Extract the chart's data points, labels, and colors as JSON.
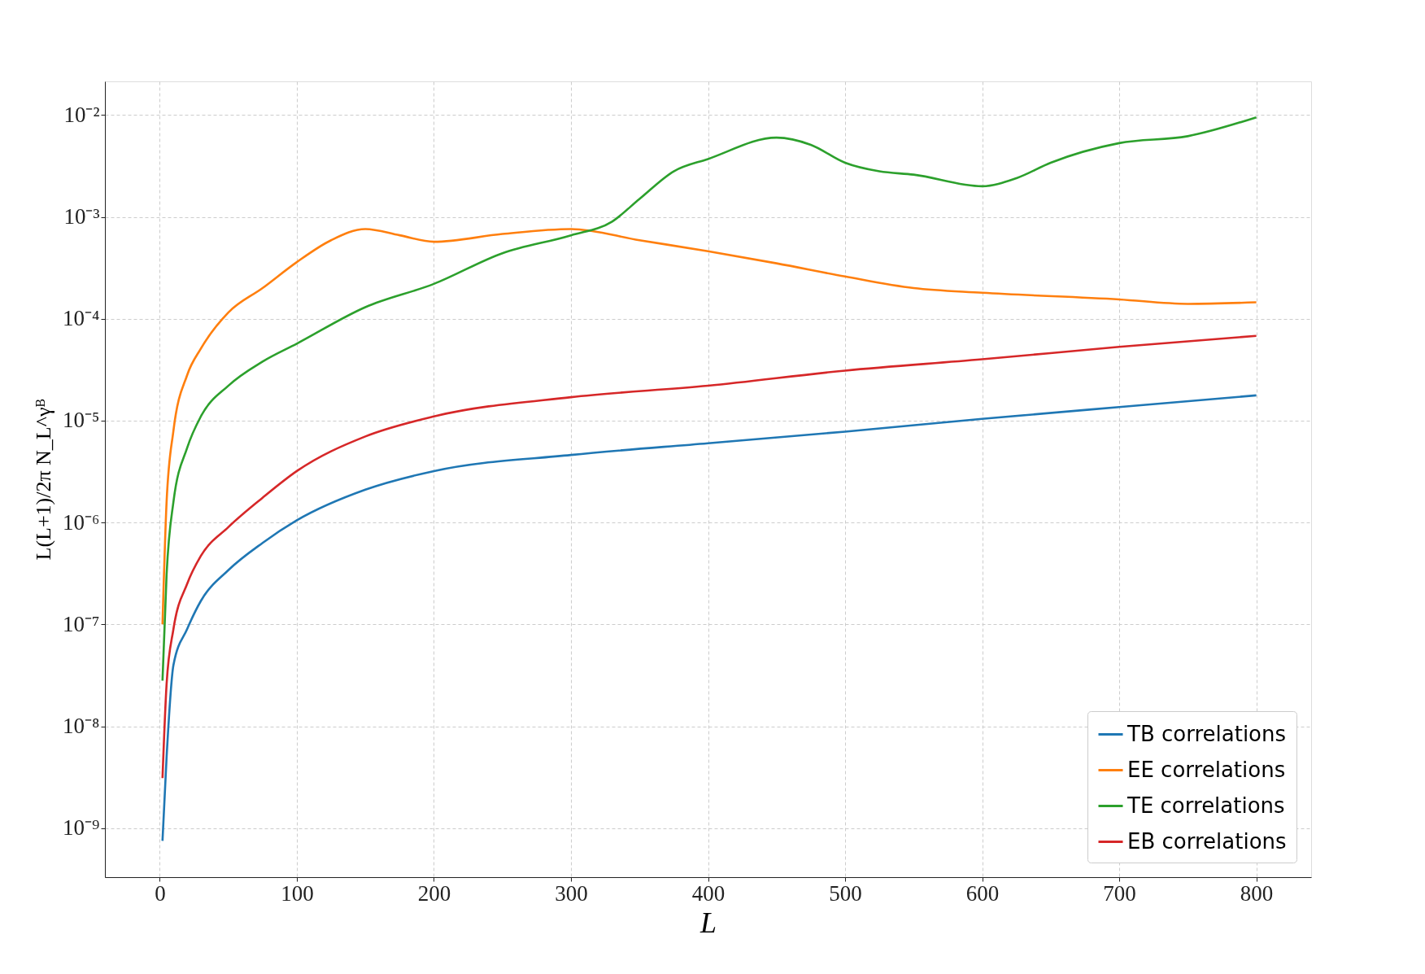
{
  "chart_data": {
    "type": "line",
    "xlabel": "L",
    "ylabel": "L(L+1)/2π N_L^γᴮ",
    "log": "y",
    "grid": true,
    "line_style": "solid",
    "legend": "bottom right",
    "marker": "none",
    "xlim": [
      -40,
      840
    ],
    "xticks": [
      0,
      100,
      200,
      300,
      400,
      500,
      600,
      700,
      800
    ],
    "ylim": [
      3.3e-10,
      0.0214
    ],
    "yticks": [
      {
        "value": 1e-09,
        "label": "10⁻⁹"
      },
      {
        "value": 1e-08,
        "label": "10⁻⁸"
      },
      {
        "value": 1e-07,
        "label": "10⁻⁷"
      },
      {
        "value": 1e-06,
        "label": "10⁻⁶"
      },
      {
        "value": 1e-05,
        "label": "10⁻⁵"
      },
      {
        "value": 0.0001,
        "label": "10⁻⁴"
      },
      {
        "value": 0.001,
        "label": "10⁻³"
      },
      {
        "value": 0.01,
        "label": "10⁻²"
      }
    ],
    "series": [
      {
        "name": "TB correlations",
        "color": "#1f77b4",
        "x": [
          2,
          5,
          10,
          20,
          30,
          50,
          75,
          100,
          150,
          200,
          300,
          400,
          500,
          600,
          700,
          800
        ],
        "values": [
          7.5e-10,
          5e-09,
          4e-08,
          9e-08,
          1.7e-07,
          3.4e-07,
          6.3e-07,
          1.05e-06,
          2.1e-06,
          3.2e-06,
          4.6e-06,
          6e-06,
          7.8e-06,
          1.04e-05,
          1.36e-05,
          1.77e-05
        ]
      },
      {
        "name": "EE correlations",
        "color": "#ff7f0e",
        "x": [
          2,
          5,
          10,
          20,
          30,
          50,
          75,
          100,
          125,
          150,
          175,
          200,
          250,
          300,
          350,
          400,
          450,
          500,
          550,
          600,
          700,
          750,
          800
        ],
        "values": [
          1e-07,
          1.6e-06,
          8e-06,
          2.8e-05,
          5.1e-05,
          0.000115,
          0.0002,
          0.00036,
          0.00059,
          0.00076,
          0.00066,
          0.00057,
          0.00068,
          0.00076,
          0.00059,
          0.00046,
          0.00035,
          0.00026,
          0.0002,
          0.00018,
          0.000155,
          0.00014,
          0.000145
        ]
      },
      {
        "name": "TE correlations",
        "color": "#2ca02c",
        "x": [
          2,
          5,
          10,
          20,
          30,
          50,
          75,
          100,
          150,
          200,
          250,
          300,
          330,
          350,
          375,
          400,
          450,
          475,
          500,
          525,
          550,
          600,
          625,
          650,
          700,
          750,
          800
        ],
        "values": [
          2.8e-08,
          3.1e-07,
          1.6e-06,
          5.4e-06,
          1.1e-05,
          2.2e-05,
          3.8e-05,
          5.7e-05,
          0.00013,
          0.00022,
          0.00044,
          0.00066,
          0.0009,
          0.0015,
          0.0028,
          0.0037,
          0.006,
          0.0051,
          0.0034,
          0.0028,
          0.0026,
          0.002,
          0.0024,
          0.0034,
          0.0053,
          0.0062,
          0.0095
        ]
      },
      {
        "name": "EB correlations",
        "color": "#d62728",
        "x": [
          2,
          5,
          10,
          20,
          30,
          50,
          75,
          100,
          150,
          200,
          300,
          400,
          500,
          600,
          700,
          800
        ],
        "values": [
          3.1e-09,
          2.6e-08,
          9e-08,
          2.5e-07,
          4.7e-07,
          9e-07,
          1.75e-06,
          3.2e-06,
          7e-06,
          1.1e-05,
          1.7e-05,
          2.2e-05,
          3.1e-05,
          4e-05,
          5.3e-05,
          6.8e-05
        ]
      }
    ]
  }
}
